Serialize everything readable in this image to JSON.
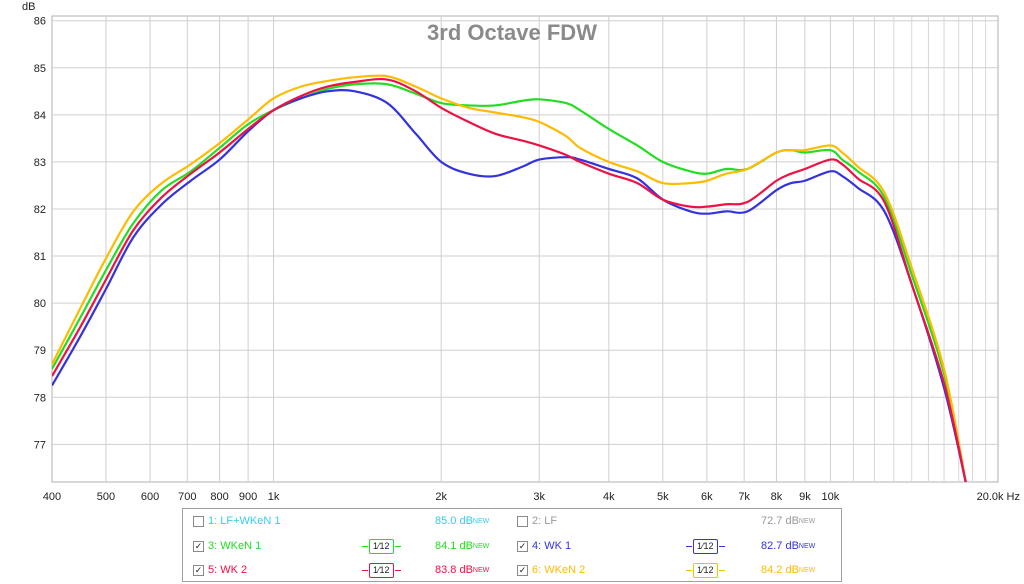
{
  "chart_data": {
    "type": "line",
    "title": "3rd Octave FDW",
    "ylabel": "dB",
    "xscale": "log",
    "xlim": [
      400,
      20000
    ],
    "ylim": [
      76.2,
      86.1
    ],
    "yticks": [
      77,
      78,
      79,
      80,
      81,
      82,
      83,
      84,
      85,
      86
    ],
    "xticks": [
      {
        "v": 400,
        "label": "400"
      },
      {
        "v": 500,
        "label": "500"
      },
      {
        "v": 600,
        "label": "600"
      },
      {
        "v": 700,
        "label": "700"
      },
      {
        "v": 800,
        "label": "800"
      },
      {
        "v": 900,
        "label": "900"
      },
      {
        "v": 1000,
        "label": "1k"
      },
      {
        "v": 2000,
        "label": "2k"
      },
      {
        "v": 3000,
        "label": "3k"
      },
      {
        "v": 4000,
        "label": "4k"
      },
      {
        "v": 5000,
        "label": "5k"
      },
      {
        "v": 6000,
        "label": "6k"
      },
      {
        "v": 7000,
        "label": "7k"
      },
      {
        "v": 8000,
        "label": "8k"
      },
      {
        "v": 9000,
        "label": "9k"
      },
      {
        "v": 10000,
        "label": "10k"
      },
      {
        "v": 20000,
        "label": "20.0k Hz"
      }
    ],
    "grid": true,
    "series": [
      {
        "name": "3: WKeN 1",
        "color": "#22dd22",
        "x": [
          400,
          450,
          500,
          560,
          630,
          710,
          800,
          900,
          1000,
          1120,
          1250,
          1400,
          1600,
          1800,
          2000,
          2240,
          2500,
          2800,
          3000,
          3350,
          3550,
          4000,
          4500,
          5000,
          5600,
          6000,
          6500,
          7100,
          8000,
          8500,
          9000,
          10000,
          10500,
          11200,
          12500,
          14000,
          16000,
          17500
        ],
        "y": [
          78.6,
          79.7,
          80.7,
          81.7,
          82.4,
          82.8,
          83.3,
          83.8,
          84.1,
          84.35,
          84.55,
          84.65,
          84.65,
          84.45,
          84.25,
          84.2,
          84.2,
          84.3,
          84.33,
          84.25,
          84.1,
          83.7,
          83.35,
          83.0,
          82.8,
          82.75,
          82.85,
          82.85,
          83.2,
          83.25,
          83.2,
          83.25,
          83.05,
          82.8,
          82.25,
          80.6,
          78.5,
          76.2
        ]
      },
      {
        "name": "4: WK 1",
        "color": "#3333dd",
        "x": [
          400,
          450,
          500,
          560,
          630,
          710,
          800,
          900,
          1000,
          1120,
          1250,
          1400,
          1600,
          1800,
          2000,
          2240,
          2500,
          2800,
          3000,
          3350,
          3550,
          4000,
          4500,
          5000,
          5600,
          6000,
          6500,
          7100,
          8000,
          8500,
          9000,
          10000,
          10500,
          11200,
          12500,
          14000,
          16000,
          17500
        ],
        "y": [
          78.25,
          79.3,
          80.3,
          81.4,
          82.1,
          82.6,
          83.05,
          83.65,
          84.1,
          84.35,
          84.5,
          84.5,
          84.25,
          83.6,
          83.0,
          82.75,
          82.7,
          82.9,
          83.05,
          83.1,
          83.05,
          82.85,
          82.65,
          82.2,
          81.95,
          81.9,
          81.95,
          81.95,
          82.4,
          82.55,
          82.6,
          82.8,
          82.7,
          82.45,
          81.95,
          80.4,
          78.2,
          76.2
        ]
      },
      {
        "name": "5: WK 2",
        "color": "#ee1144",
        "x": [
          400,
          450,
          500,
          560,
          630,
          710,
          800,
          900,
          1000,
          1120,
          1250,
          1400,
          1600,
          1800,
          2000,
          2240,
          2500,
          2800,
          3000,
          3350,
          3550,
          4000,
          4500,
          5000,
          5600,
          6000,
          6500,
          7100,
          8000,
          8500,
          9000,
          10000,
          10500,
          11200,
          12500,
          14000,
          16000,
          17500
        ],
        "y": [
          78.45,
          79.5,
          80.5,
          81.55,
          82.25,
          82.75,
          83.2,
          83.7,
          84.1,
          84.4,
          84.6,
          84.7,
          84.75,
          84.5,
          84.15,
          83.85,
          83.6,
          83.45,
          83.35,
          83.15,
          83.0,
          82.75,
          82.55,
          82.2,
          82.05,
          82.05,
          82.1,
          82.15,
          82.6,
          82.75,
          82.85,
          83.05,
          82.95,
          82.65,
          82.15,
          80.4,
          78.3,
          76.2
        ]
      },
      {
        "name": "6: WKeN 2",
        "color": "#ffbb00",
        "x": [
          400,
          450,
          500,
          560,
          630,
          710,
          800,
          900,
          1000,
          1120,
          1250,
          1400,
          1600,
          1800,
          2000,
          2240,
          2500,
          2800,
          3000,
          3350,
          3550,
          4000,
          4500,
          5000,
          5600,
          6000,
          6500,
          7100,
          8000,
          8500,
          9000,
          10000,
          10500,
          11200,
          12500,
          14000,
          16000,
          17500
        ],
        "y": [
          78.7,
          79.9,
          80.95,
          81.95,
          82.55,
          82.95,
          83.4,
          83.9,
          84.35,
          84.6,
          84.72,
          84.8,
          84.82,
          84.6,
          84.35,
          84.15,
          84.05,
          83.95,
          83.85,
          83.55,
          83.3,
          83.0,
          82.8,
          82.55,
          82.55,
          82.6,
          82.75,
          82.85,
          83.2,
          83.25,
          83.25,
          83.35,
          83.2,
          82.9,
          82.35,
          80.75,
          78.6,
          76.2
        ]
      }
    ]
  },
  "legend": [
    {
      "label": "1: LF+WKeN 1",
      "checked": false,
      "level": "85.0 dB",
      "sup": "NEW",
      "color": "#33ccee",
      "smoothing": ""
    },
    {
      "label": "2: LF",
      "checked": false,
      "level": "72.7 dB",
      "sup": "NEW",
      "color": "#999999",
      "smoothing": ""
    },
    {
      "label": "3: WKeN 1",
      "checked": true,
      "level": "84.1 dB",
      "sup": "NEW",
      "color": "#22dd22",
      "smoothing": "1⁄12"
    },
    {
      "label": "4: WK 1",
      "checked": true,
      "level": "82.7 dB",
      "sup": "NEW",
      "color": "#3333dd",
      "smoothing": "1⁄12"
    },
    {
      "label": "5: WK 2",
      "checked": true,
      "level": "83.8 dB",
      "sup": "NEW",
      "color": "#ee1144",
      "smoothing": "1⁄12"
    },
    {
      "label": "6: WKeN 2",
      "checked": true,
      "level": "84.2 dB",
      "sup": "NEW",
      "color": "#ffbb00",
      "smoothing": "1⁄12"
    }
  ]
}
